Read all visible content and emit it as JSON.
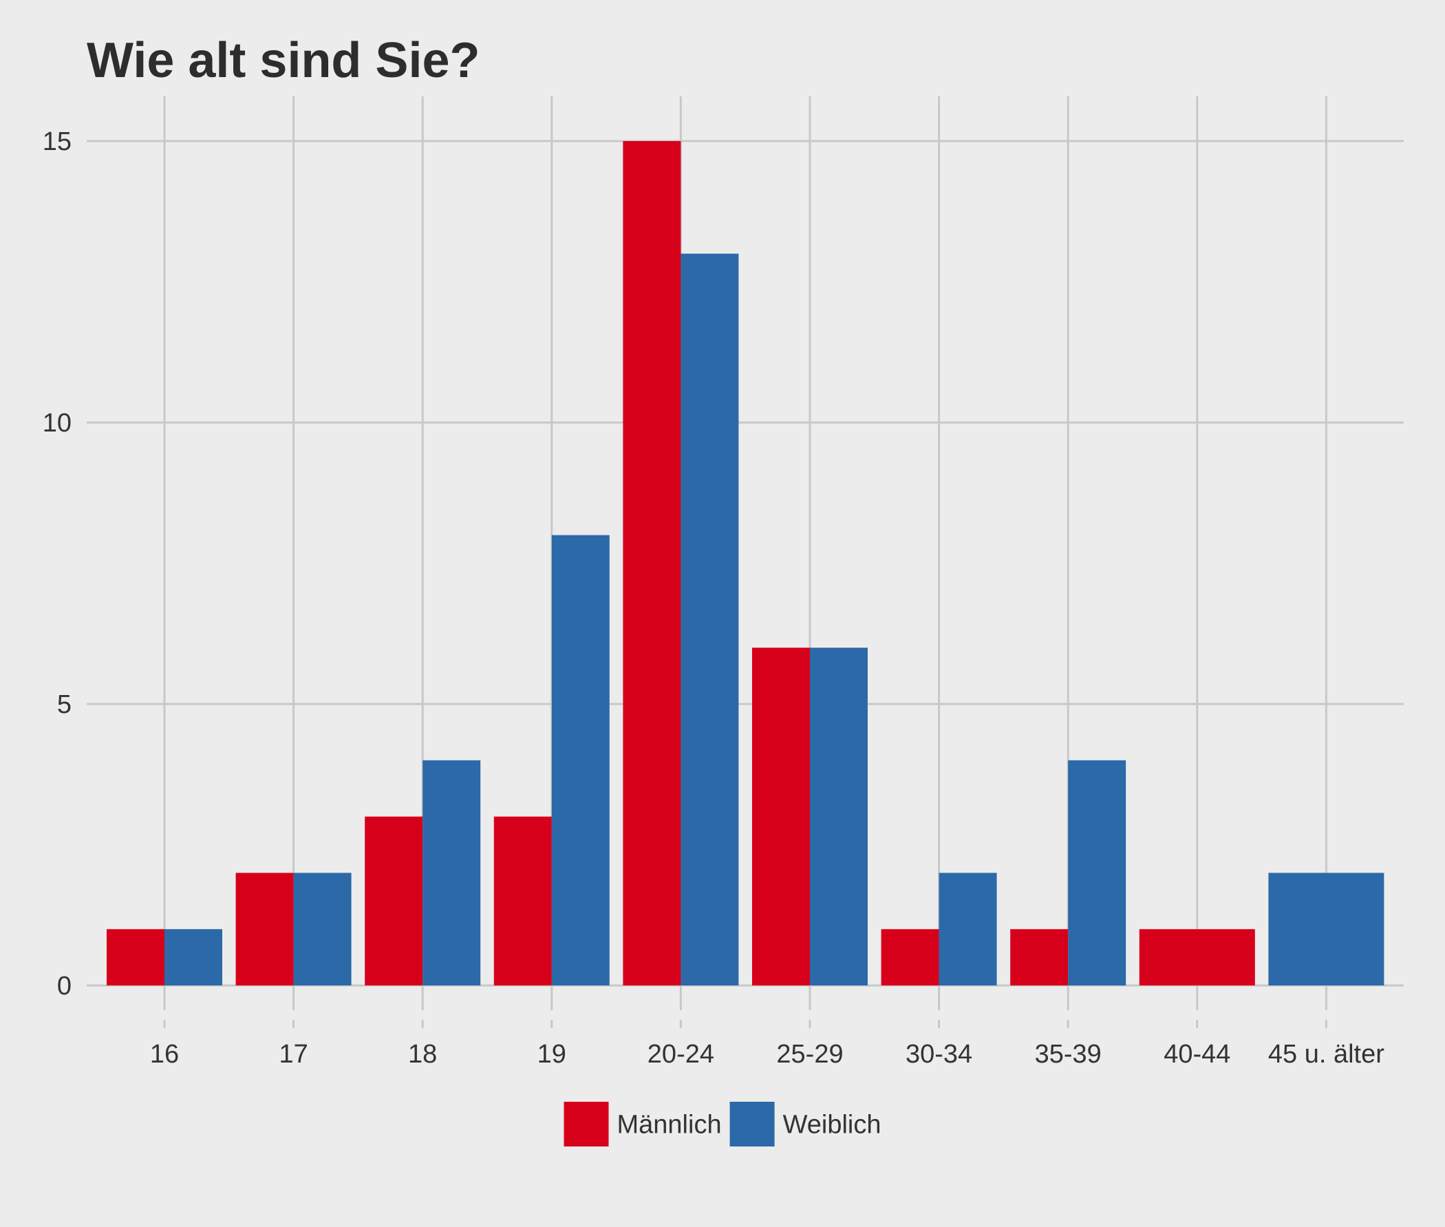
{
  "chart_data": {
    "type": "bar",
    "title": "Wie alt sind Sie?",
    "xlabel": "",
    "ylabel": "",
    "categories": [
      "16",
      "17",
      "18",
      "19",
      "20-24",
      "25-29",
      "30-34",
      "35-39",
      "40-44",
      "45 u. älter"
    ],
    "series": [
      {
        "name": "Männlich",
        "color": "#d7001a",
        "values": [
          1,
          2,
          3,
          3,
          15,
          6,
          1,
          1,
          1,
          null
        ]
      },
      {
        "name": "Weiblich",
        "color": "#2c69a8",
        "values": [
          1,
          2,
          4,
          8,
          13,
          6,
          2,
          4,
          null,
          2
        ]
      }
    ],
    "ylim": [
      0,
      15
    ],
    "yticks": [
      0,
      5,
      10,
      15
    ],
    "grid": true,
    "legend_position": "bottom"
  }
}
